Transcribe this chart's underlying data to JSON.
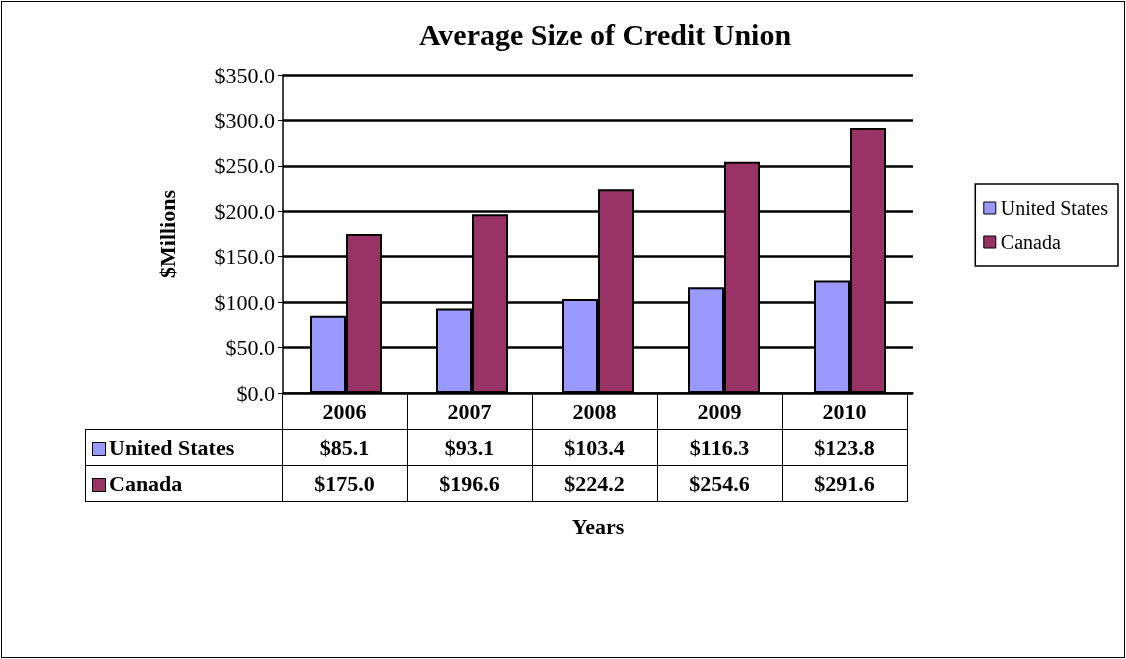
{
  "chart_data": {
    "type": "bar",
    "title": "Average Size of Credit Union",
    "xlabel": "Years",
    "ylabel": "$Millions",
    "categories": [
      "2006",
      "2007",
      "2008",
      "2009",
      "2010"
    ],
    "series": [
      {
        "name": "United States",
        "color": "#9999ff",
        "values": [
          85.1,
          93.1,
          103.4,
          116.3,
          123.8
        ],
        "value_labels": [
          "$85.1",
          "$93.1",
          "$103.4",
          "$116.3",
          "$123.8"
        ]
      },
      {
        "name": "Canada",
        "color": "#993366",
        "values": [
          175.0,
          196.6,
          224.2,
          254.6,
          291.6
        ],
        "value_labels": [
          "$175.0",
          "$196.6",
          "$224.2",
          "$254.6",
          "$291.6"
        ]
      }
    ],
    "ylim": [
      0,
      350
    ],
    "yticks": [
      {
        "value": 0,
        "label": "$0.0"
      },
      {
        "value": 50,
        "label": "$50.0"
      },
      {
        "value": 100,
        "label": "$100.0"
      },
      {
        "value": 150,
        "label": "$150.0"
      },
      {
        "value": 200,
        "label": "$200.0"
      },
      {
        "value": 250,
        "label": "$250.0"
      },
      {
        "value": 300,
        "label": "$300.0"
      },
      {
        "value": 350,
        "label": "$350.0"
      }
    ],
    "grid": "y",
    "legend": "right"
  }
}
